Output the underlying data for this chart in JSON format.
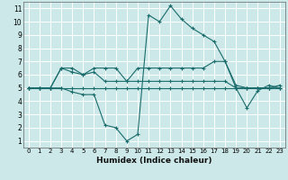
{
  "xlabel": "Humidex (Indice chaleur)",
  "xlim": [
    -0.5,
    23.5
  ],
  "ylim": [
    0.5,
    11.5
  ],
  "xticks": [
    0,
    1,
    2,
    3,
    4,
    5,
    6,
    7,
    8,
    9,
    10,
    11,
    12,
    13,
    14,
    15,
    16,
    17,
    18,
    19,
    20,
    21,
    22,
    23
  ],
  "yticks": [
    1,
    2,
    3,
    4,
    5,
    6,
    7,
    8,
    9,
    10,
    11
  ],
  "bg_color": "#cce8e8",
  "line_color": "#1a6b6b",
  "grid_color": "#ffffff",
  "lines": [
    {
      "x": [
        0,
        1,
        2,
        3,
        4,
        5,
        6,
        7,
        8,
        9,
        10,
        11,
        12,
        13,
        14,
        15,
        16,
        17,
        18,
        19,
        20,
        21,
        22,
        23
      ],
      "y": [
        5,
        5,
        5,
        5,
        4.7,
        4.5,
        4.5,
        2.2,
        2.0,
        1.0,
        1.5,
        10.5,
        10.0,
        11.2,
        10.2,
        9.5,
        9.0,
        8.5,
        7.0,
        5.0,
        3.5,
        4.8,
        5.2,
        5.0
      ]
    },
    {
      "x": [
        0,
        1,
        2,
        3,
        4,
        5,
        6,
        7,
        8,
        9,
        10,
        11,
        12,
        13,
        14,
        15,
        16,
        17,
        18,
        19,
        20,
        21,
        22,
        23
      ],
      "y": [
        5,
        5,
        5,
        5,
        5,
        5,
        5,
        5,
        5,
        5,
        5,
        5,
        5,
        5,
        5,
        5,
        5,
        5,
        5,
        5,
        5,
        5,
        5,
        5
      ]
    },
    {
      "x": [
        0,
        1,
        2,
        3,
        4,
        5,
        6,
        7,
        8,
        9,
        10,
        11,
        12,
        13,
        14,
        15,
        16,
        17,
        18,
        19,
        20,
        21,
        22,
        23
      ],
      "y": [
        5,
        5,
        5,
        6.5,
        6.5,
        6.0,
        6.5,
        6.5,
        6.5,
        5.5,
        6.5,
        6.5,
        6.5,
        6.5,
        6.5,
        6.5,
        6.5,
        7.0,
        7.0,
        5.2,
        5.0,
        5.0,
        5.0,
        5.2
      ]
    },
    {
      "x": [
        0,
        1,
        2,
        3,
        4,
        5,
        6,
        7,
        8,
        9,
        10,
        11,
        12,
        13,
        14,
        15,
        16,
        17,
        18,
        19,
        20,
        21,
        22,
        23
      ],
      "y": [
        5,
        5,
        5,
        6.5,
        6.2,
        6.0,
        6.2,
        5.5,
        5.5,
        5.5,
        5.5,
        5.5,
        5.5,
        5.5,
        5.5,
        5.5,
        5.5,
        5.5,
        5.5,
        5.0,
        5.0,
        5.0,
        5.0,
        5.0
      ]
    }
  ]
}
